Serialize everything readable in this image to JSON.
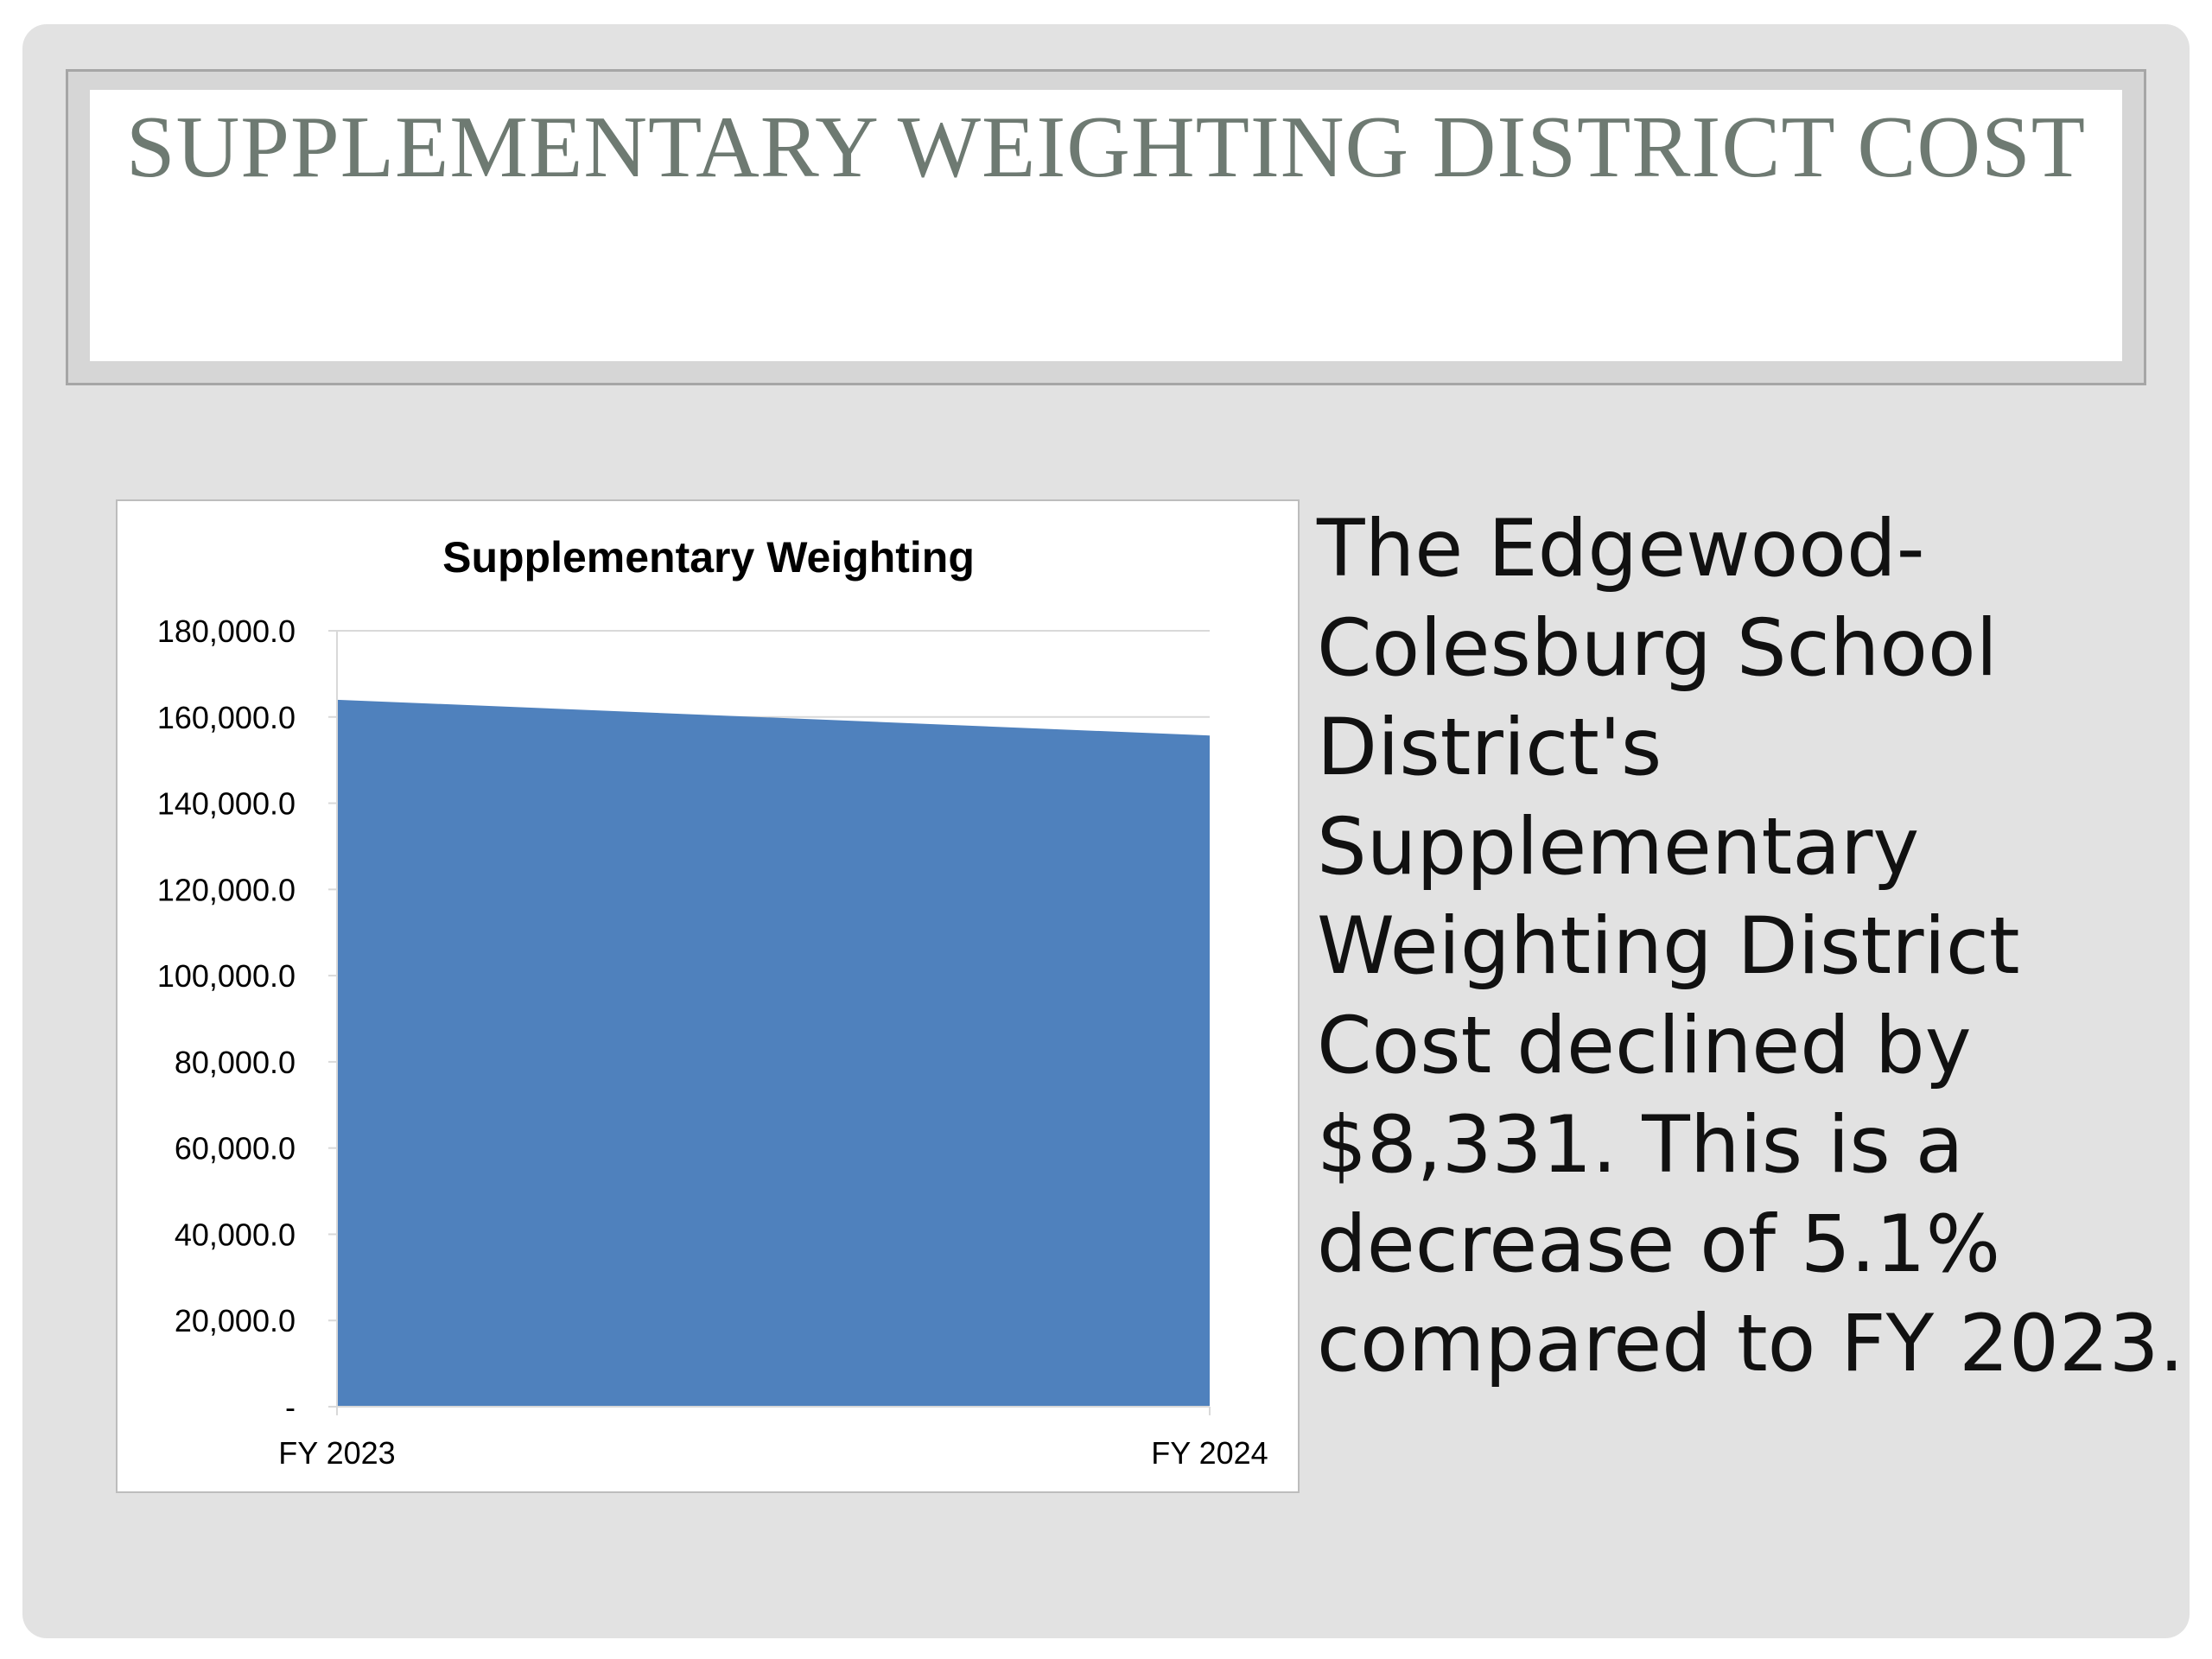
{
  "slide": {
    "title": "SUPPLEMENTARY WEIGHTING DISTRICT COST",
    "body": "The Edgewood-Colesburg School District's Supplementary Weighting District Cost declined by $8,331. This is a decrease of 5.1% compared to FY 2023."
  },
  "colors": {
    "slide_bg": "#e2e2e2",
    "title_text": "#6e7a72",
    "area_fill": "#4f81bd",
    "gridline": "#d9d9d9"
  },
  "chart_data": {
    "type": "area",
    "title": "Supplementary Weighting",
    "categories": [
      "FY 2023",
      "FY 2024"
    ],
    "series": [
      {
        "values": [
          164000,
          155700
        ]
      }
    ],
    "ylim": [
      0,
      180000
    ],
    "yticks": [
      0,
      20000,
      40000,
      60000,
      80000,
      100000,
      120000,
      140000,
      160000,
      180000
    ],
    "ytick_labels": [
      "-",
      "20,000.0",
      "40,000.0",
      "60,000.0",
      "80,000.0",
      "100,000.0",
      "120,000.0",
      "140,000.0",
      "160,000.0",
      "180,000.0"
    ],
    "grid": true,
    "legend": "none"
  }
}
